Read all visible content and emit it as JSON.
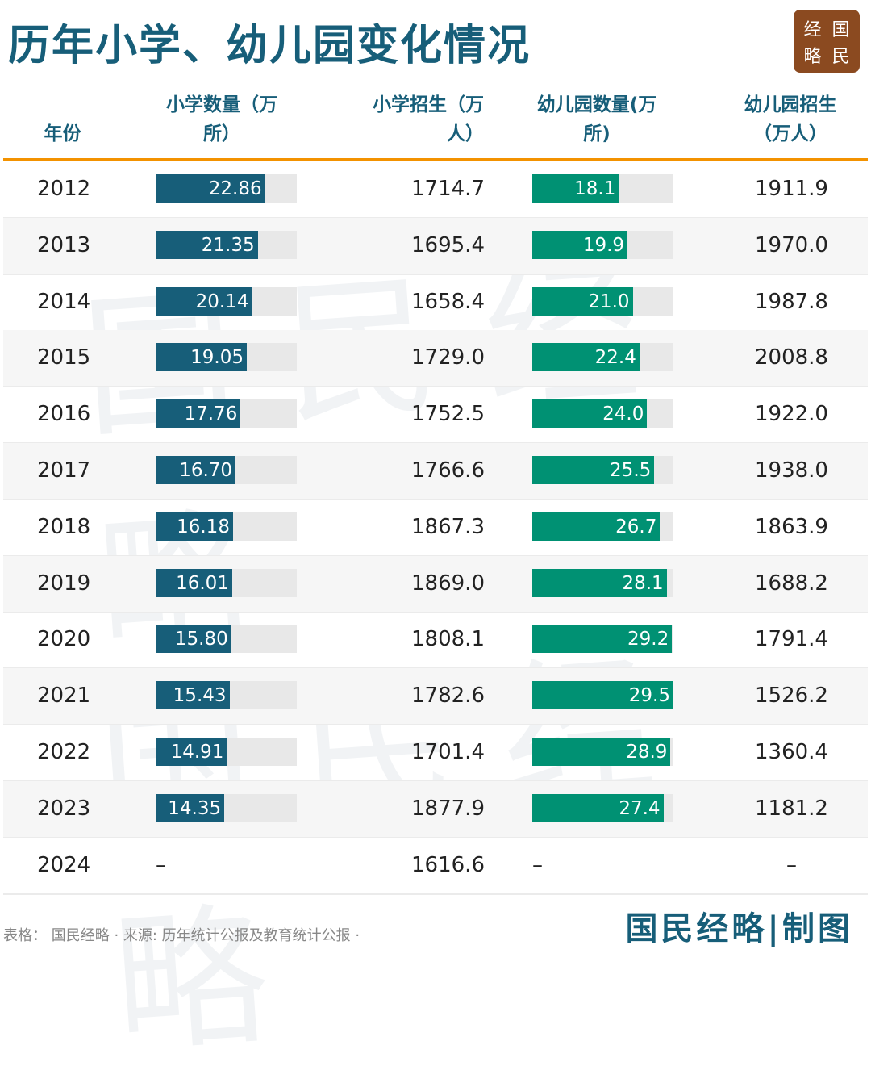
{
  "title": "历年小学、幼儿园变化情况",
  "logo": [
    "经",
    "国",
    "略",
    "民"
  ],
  "watermark": "国民经略",
  "footer": {
    "source": "表格： 国民经略 · 来源: 历年统计公报及教育统计公报 ·",
    "brand": "国民经略|制图"
  },
  "colors": {
    "header": "#175e79",
    "rule": "#f39200",
    "primary_bar": "#175e79",
    "kinder_bar": "#009173",
    "track": "#e8e8e8"
  },
  "chart_data": {
    "type": "table",
    "columns": [
      "年份",
      "小学数量（万所）",
      "小学招生（万人）",
      "幼儿园数量(万所)",
      "幼儿园招生（万人）"
    ],
    "header_lines": [
      [
        "年份"
      ],
      [
        "小学数量（万",
        "所）"
      ],
      [
        "小学招生（万",
        "人）"
      ],
      [
        "幼儿园数量(万",
        "所)"
      ],
      [
        "幼儿园招生",
        "（万人）"
      ]
    ],
    "bar_max": 29.5,
    "rows": [
      {
        "year": "2012",
        "primary_schools": "22.86",
        "primary_enroll": "1714.7",
        "kinder": "18.1",
        "kinder_enroll": "1911.9"
      },
      {
        "year": "2013",
        "primary_schools": "21.35",
        "primary_enroll": "1695.4",
        "kinder": "19.9",
        "kinder_enroll": "1970.0"
      },
      {
        "year": "2014",
        "primary_schools": "20.14",
        "primary_enroll": "1658.4",
        "kinder": "21.0",
        "kinder_enroll": "1987.8"
      },
      {
        "year": "2015",
        "primary_schools": "19.05",
        "primary_enroll": "1729.0",
        "kinder": "22.4",
        "kinder_enroll": "2008.8"
      },
      {
        "year": "2016",
        "primary_schools": "17.76",
        "primary_enroll": "1752.5",
        "kinder": "24.0",
        "kinder_enroll": "1922.0"
      },
      {
        "year": "2017",
        "primary_schools": "16.70",
        "primary_enroll": "1766.6",
        "kinder": "25.5",
        "kinder_enroll": "1938.0"
      },
      {
        "year": "2018",
        "primary_schools": "16.18",
        "primary_enroll": "1867.3",
        "kinder": "26.7",
        "kinder_enroll": "1863.9"
      },
      {
        "year": "2019",
        "primary_schools": "16.01",
        "primary_enroll": "1869.0",
        "kinder": "28.1",
        "kinder_enroll": "1688.2"
      },
      {
        "year": "2020",
        "primary_schools": "15.80",
        "primary_enroll": "1808.1",
        "kinder": "29.2",
        "kinder_enroll": "1791.4"
      },
      {
        "year": "2021",
        "primary_schools": "15.43",
        "primary_enroll": "1782.6",
        "kinder": "29.5",
        "kinder_enroll": "1526.2"
      },
      {
        "year": "2022",
        "primary_schools": "14.91",
        "primary_enroll": "1701.4",
        "kinder": "28.9",
        "kinder_enroll": "1360.4"
      },
      {
        "year": "2023",
        "primary_schools": "14.35",
        "primary_enroll": "1877.9",
        "kinder": "27.4",
        "kinder_enroll": "1181.2"
      },
      {
        "year": "2024",
        "primary_schools": "–",
        "primary_enroll": "1616.6",
        "kinder": "–",
        "kinder_enroll": "–"
      }
    ]
  }
}
